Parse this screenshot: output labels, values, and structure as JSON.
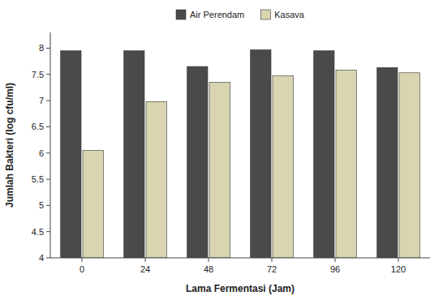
{
  "chart_data": {
    "type": "bar",
    "categories": [
      "0",
      "24",
      "48",
      "72",
      "96",
      "120"
    ],
    "series": [
      {
        "name": "Air Perendam",
        "color": "#4a4a4a",
        "values": [
          7.95,
          7.95,
          7.65,
          7.97,
          7.95,
          7.63
        ]
      },
      {
        "name": "Kasava",
        "color": "#d8d5b0",
        "values": [
          6.05,
          6.98,
          7.35,
          7.47,
          7.58,
          7.53
        ]
      }
    ],
    "xlabel": "Lama Fermentasi (Jam)",
    "ylabel": "Jumlah Bakteri (log cfu/ml)",
    "ylim": [
      4,
      8.3
    ],
    "yticks": [
      4,
      4.5,
      5,
      5.5,
      6,
      6.5,
      7,
      7.5,
      8
    ],
    "grid": false,
    "legend": "top"
  }
}
